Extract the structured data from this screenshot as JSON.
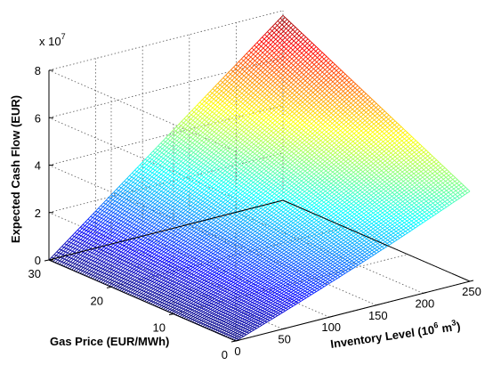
{
  "chart_data": {
    "type": "surface",
    "title": "",
    "xlabel": "Inventory Level (10",
    "xlabel_sup1": "6",
    "xlabel_mid": " m",
    "xlabel_sup2": "3",
    "xlabel_end": ")",
    "ylabel": "Gas Price (EUR/MWh)",
    "zlabel": "Expected Cash Flow (EUR)",
    "z_multiplier_base": "x 10",
    "z_multiplier_exp": "7",
    "xlim": [
      0,
      250
    ],
    "ylim": [
      0,
      30
    ],
    "zlim": [
      0,
      8
    ],
    "x_ticks": [
      "0",
      "50",
      "100",
      "150",
      "200",
      "250"
    ],
    "y_ticks": [
      "0",
      "10",
      "20",
      "30"
    ],
    "z_ticks": [
      "0",
      "2",
      "4",
      "6",
      "8"
    ],
    "z_scale": 10000000,
    "colormap": "jet",
    "grid": true,
    "corner_values": {
      "x0_y0": 0,
      "x250_y0": 38000000,
      "x0_y30": 0,
      "x250_y30": 78000000,
      "x125_y30": 39000000,
      "x125_y0": 18000000
    }
  }
}
